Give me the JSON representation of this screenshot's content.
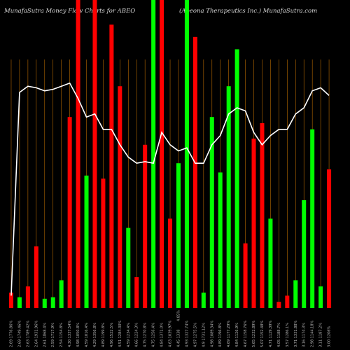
{
  "header": {
    "left_title": "MunafaSutra  Money Flow  Charts for ABEO",
    "right_title": "(Abeona  Therapeutics Inc.) MunafaSutra.com"
  },
  "colors": {
    "background": "#000000",
    "up": "#00ff00",
    "down": "#ff0000",
    "line": "#ffffff",
    "grid": "#b86a00"
  },
  "chart_data": {
    "type": "bar",
    "title": "",
    "ylim": [
      0,
      100
    ],
    "series": [
      {
        "name": "",
        "bars": [
          {
            "value": 5,
            "dir": "down"
          },
          {
            "value": 3.5,
            "dir": "up"
          },
          {
            "value": 7,
            "dir": "down"
          },
          {
            "value": 20,
            "dir": "down"
          },
          {
            "value": 3,
            "dir": "up"
          },
          {
            "value": 3.5,
            "dir": "up"
          },
          {
            "value": 9,
            "dir": "up"
          },
          {
            "value": 62,
            "dir": "down"
          },
          {
            "value": 100,
            "dir": "down"
          },
          {
            "value": 43,
            "dir": "up"
          },
          {
            "value": 100,
            "dir": "down"
          },
          {
            "value": 42,
            "dir": "down"
          },
          {
            "value": 92,
            "dir": "down"
          },
          {
            "value": 72,
            "dir": "down"
          },
          {
            "value": 26,
            "dir": "up"
          },
          {
            "value": 10,
            "dir": "down"
          },
          {
            "value": 53,
            "dir": "down"
          },
          {
            "value": 100,
            "dir": "up"
          },
          {
            "value": 100,
            "dir": "down"
          },
          {
            "value": 29,
            "dir": "down"
          },
          {
            "value": 47,
            "dir": "up"
          },
          {
            "value": 100,
            "dir": "up"
          },
          {
            "value": 88,
            "dir": "down"
          },
          {
            "value": 5,
            "dir": "up"
          },
          {
            "value": 62,
            "dir": "up"
          },
          {
            "value": 44,
            "dir": "up"
          },
          {
            "value": 72,
            "dir": "up"
          },
          {
            "value": 84,
            "dir": "up"
          },
          {
            "value": 21,
            "dir": "down"
          },
          {
            "value": 55,
            "dir": "down"
          },
          {
            "value": 60,
            "dir": "down"
          },
          {
            "value": 29,
            "dir": "up"
          },
          {
            "value": 2,
            "dir": "down"
          },
          {
            "value": 4,
            "dir": "down"
          },
          {
            "value": 9,
            "dir": "up"
          },
          {
            "value": 35,
            "dir": "up"
          },
          {
            "value": 58,
            "dir": "up"
          },
          {
            "value": 7,
            "dir": "up"
          },
          {
            "value": 45,
            "dir": "down"
          }
        ]
      },
      {
        "name": "",
        "values": [
          4,
          70,
          72,
          71.5,
          70.5,
          71,
          72,
          73,
          68,
          62,
          63,
          58,
          58,
          53,
          49,
          47,
          47.5,
          47,
          57,
          53,
          51,
          52,
          47,
          47,
          53,
          56,
          63,
          65,
          64,
          57,
          53,
          56,
          58,
          58,
          63,
          65,
          70.5,
          71.5,
          69
        ]
      }
    ],
    "categories": [
      "2.69  1776.86%",
      "2.69  1749.46%",
      "2.63  1789.42%",
      "2.64  1931.96%",
      "2.61  1868.4%",
      "2.59  1717.9%",
      "2.54  1154.8%",
      "4.30  1337.54%",
      "4.98  1050.8%",
      "4.59  1016.4%",
      "4.29  1356.8%",
      "4.89  1199.8%",
      "4.96  1522.5%",
      "4.51  1284.30%",
      "4.59  1234.4%",
      "4.66  1224.3%",
      "4.75  1270.8%",
      "4.75  1256.4%",
      "4.84  1371.0%",
      "4.63  1039.97%",
      "4.45  1338",
      "4.93  1327.74%",
      "4.97  1275.5%",
      "4.9  1731.12%",
      "4.98  1089.34%",
      "4.89  1196.8%",
      "4.69  1177.29%",
      "4.84  1126.9%",
      "4.67  1158.76%",
      "5.65  1232.89%",
      "5.07  1152.48%",
      "4.71  1129.39%",
      "4.05  1188.7%",
      "3.57  1286.1%",
      "3.71  1331.88%",
      "3.16  1174.3%",
      "2.98  1144.18%",
      "3.11  1187.2%",
      "3.00  1206%"
    ],
    "annotations": [
      "4.85%"
    ]
  }
}
